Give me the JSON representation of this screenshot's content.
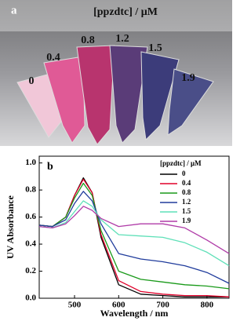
{
  "photo": {
    "panel_label": "a",
    "title": "[ppzdtc] / μM",
    "tube_labels": [
      "0",
      "0.4",
      "0.8",
      "1.2",
      "1.5",
      "1.9"
    ]
  },
  "chart_data": {
    "type": "line",
    "panel_label": "b",
    "xlabel": "Wavelength / nm",
    "ylabel": "UV Absorbance",
    "legend_title": "[ppzdtc] / μM",
    "legend": "upper right",
    "x": [
      420,
      450,
      480,
      500,
      520,
      540,
      560,
      600,
      650,
      700,
      750,
      800,
      850
    ],
    "series": [
      {
        "name": "0",
        "color": "#000000",
        "values": [
          0.54,
          0.53,
          0.6,
          0.76,
          0.89,
          0.78,
          0.45,
          0.1,
          0.03,
          0.02,
          0.01,
          0.01,
          0.01
        ]
      },
      {
        "name": "0.4",
        "color": "#e0002a",
        "values": [
          0.54,
          0.53,
          0.6,
          0.76,
          0.88,
          0.78,
          0.47,
          0.13,
          0.05,
          0.03,
          0.02,
          0.02,
          0.01
        ]
      },
      {
        "name": "0.8",
        "color": "#1a9a1a",
        "values": [
          0.54,
          0.53,
          0.6,
          0.74,
          0.85,
          0.76,
          0.5,
          0.2,
          0.14,
          0.12,
          0.1,
          0.09,
          0.07
        ]
      },
      {
        "name": "1.2",
        "color": "#203c9c",
        "values": [
          0.54,
          0.53,
          0.58,
          0.7,
          0.79,
          0.72,
          0.55,
          0.33,
          0.29,
          0.27,
          0.24,
          0.19,
          0.11
        ]
      },
      {
        "name": "1.5",
        "color": "#5fe0b8",
        "values": [
          0.53,
          0.52,
          0.56,
          0.64,
          0.72,
          0.68,
          0.58,
          0.47,
          0.46,
          0.45,
          0.41,
          0.34,
          0.24
        ]
      },
      {
        "name": "1.9",
        "color": "#b03ca8",
        "values": [
          0.53,
          0.52,
          0.55,
          0.61,
          0.68,
          0.65,
          0.59,
          0.53,
          0.55,
          0.55,
          0.52,
          0.43,
          0.33
        ]
      }
    ],
    "xlim": [
      420,
      850
    ],
    "xticks": [
      500,
      600,
      700,
      800
    ],
    "ylim": [
      0,
      1.05
    ],
    "yticks": [
      {
        "value": 0,
        "label": "0.0"
      },
      0.2,
      0.4,
      0.6,
      0.8,
      {
        "value": 1,
        "label": "1.0"
      }
    ]
  }
}
